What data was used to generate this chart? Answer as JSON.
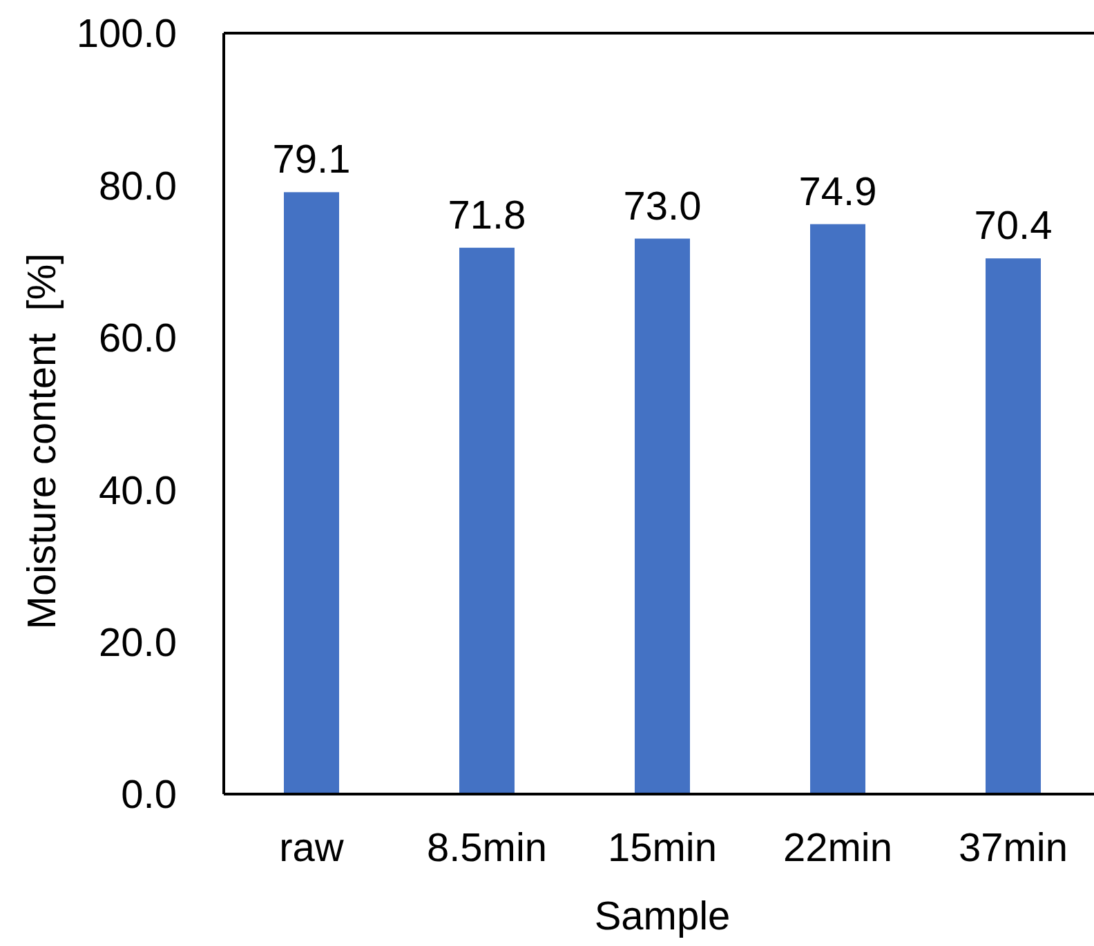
{
  "chart_data": {
    "type": "bar",
    "xlabel": "Sample",
    "ylabel": "Moisture content  [%]",
    "categories": [
      "raw",
      "8.5min",
      "15min",
      "22min",
      "37min"
    ],
    "values": [
      79.1,
      71.8,
      73.0,
      74.9,
      70.4
    ],
    "value_labels": [
      "79.1",
      "71.8",
      "73.0",
      "74.9",
      "70.4"
    ],
    "color": "#4472c4",
    "ylim": [
      0,
      100
    ],
    "yticks": [
      {
        "value": 0,
        "label": "0.0"
      },
      {
        "value": 20,
        "label": "20.0"
      },
      {
        "value": 40,
        "label": "40.0"
      },
      {
        "value": 60,
        "label": "60.0"
      },
      {
        "value": 80,
        "label": "80.0"
      },
      {
        "value": 100,
        "label": "100.0"
      }
    ]
  }
}
